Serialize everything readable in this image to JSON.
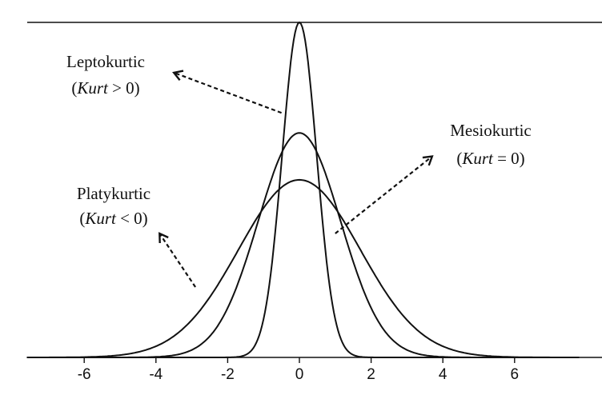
{
  "chart_data": {
    "type": "line",
    "title": "",
    "xlabel": "",
    "ylabel": "",
    "xlim": [
      -7.6,
      7.8
    ],
    "ylim": [
      0,
      1.0
    ],
    "x_ticks": [
      "-6",
      "-4",
      "-2",
      "0",
      "2",
      "4",
      "6"
    ],
    "x_tick_values": [
      -6,
      -4,
      -2,
      0,
      2,
      4,
      6
    ],
    "grid": false,
    "legend": "none",
    "series": [
      {
        "distribution": "normal",
        "mean": 0,
        "sd": 1.7,
        "peak": 0.53
      },
      {
        "distribution": "normal",
        "mean": 0,
        "sd": 1.15,
        "peak": 0.67
      },
      {
        "distribution": "normal",
        "mean": 0,
        "sd": 0.48,
        "peak": 1.0
      }
    ],
    "annotations": [
      {
        "line1": "Leptokurtic",
        "line2_italic": "Kurt",
        "line2_rest": " > 0)",
        "arrow_from": [
          -0.5,
          0.73
        ],
        "arrow_to": [
          -3.5,
          0.85
        ]
      },
      {
        "line1": "Mesiokurtic",
        "line2_italic": "Kurt",
        "line2_rest": " = 0)",
        "arrow_from": [
          1.0,
          0.37
        ],
        "arrow_to": [
          3.7,
          0.6
        ]
      },
      {
        "line1": "Platykurtic",
        "line2_italic": "Kurt",
        "line2_rest": " < 0)",
        "arrow_from": [
          -2.9,
          0.21
        ],
        "arrow_to": [
          -3.9,
          0.37
        ]
      }
    ]
  }
}
